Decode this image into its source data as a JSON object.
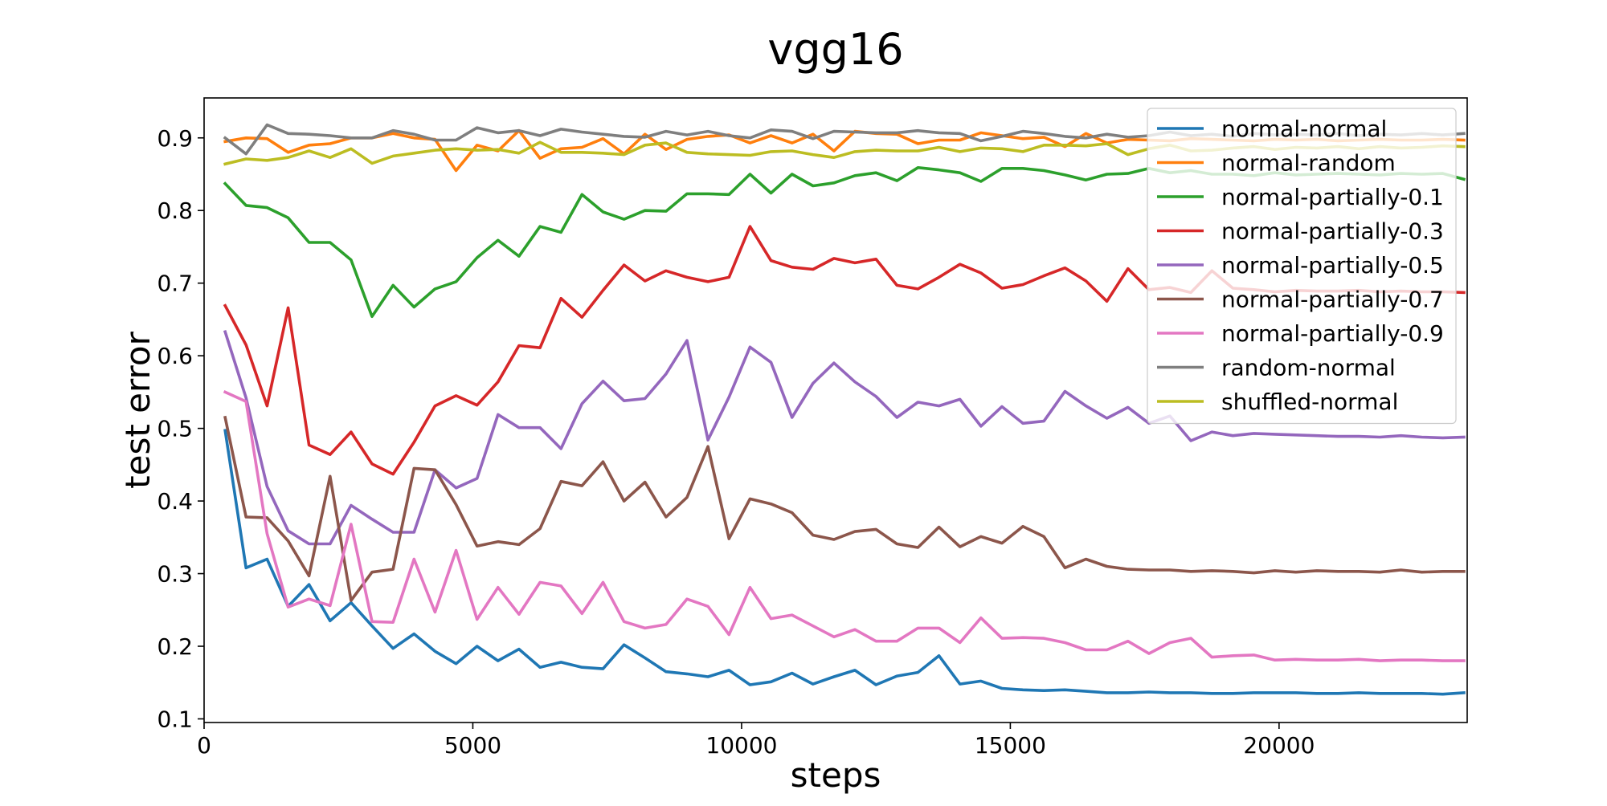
{
  "chart_data": {
    "type": "line",
    "title": "vgg16",
    "xlabel": "steps",
    "ylabel": "test error",
    "xlim": [
      0,
      23500
    ],
    "ylim": [
      0.095,
      0.955
    ],
    "xticks": [
      0,
      5000,
      10000,
      15000,
      20000
    ],
    "yticks": [
      0.1,
      0.2,
      0.3,
      0.4,
      0.5,
      0.6,
      0.7,
      0.8,
      0.9
    ],
    "grid": false,
    "legend_position": "top-right",
    "x": [
      391,
      781,
      1172,
      1563,
      1953,
      2344,
      2734,
      3125,
      3516,
      3906,
      4297,
      4688,
      5078,
      5469,
      5859,
      6250,
      6641,
      7031,
      7422,
      7813,
      8203,
      8594,
      8984,
      9375,
      9766,
      10156,
      10547,
      10938,
      11328,
      11719,
      12109,
      12500,
      12891,
      13281,
      13672,
      14063,
      14453,
      14844,
      15234,
      15625,
      16016,
      16406,
      16797,
      17188,
      17578,
      17969,
      18359,
      18750,
      19141,
      19531,
      19922,
      20313,
      20703,
      21094,
      21484,
      21875,
      22266,
      22656,
      23047,
      23438
    ],
    "series": [
      {
        "name": "normal-normal",
        "color": "#1f77b4",
        "values": [
          0.497,
          0.308,
          0.32,
          0.255,
          0.285,
          0.235,
          0.26,
          0.228,
          0.197,
          0.217,
          0.193,
          0.176,
          0.2,
          0.18,
          0.196,
          0.171,
          0.178,
          0.171,
          0.169,
          0.202,
          0.184,
          0.165,
          0.162,
          0.158,
          0.167,
          0.147,
          0.151,
          0.163,
          0.148,
          0.158,
          0.167,
          0.147,
          0.159,
          0.164,
          0.187,
          0.148,
          0.152,
          0.142,
          0.14,
          0.139,
          0.14,
          0.138,
          0.136,
          0.136,
          0.137,
          0.136,
          0.136,
          0.135,
          0.135,
          0.136,
          0.136,
          0.136,
          0.135,
          0.135,
          0.136,
          0.135,
          0.135,
          0.135,
          0.134,
          0.136
        ]
      },
      {
        "name": "normal-random",
        "color": "#ff7f0e",
        "values": [
          0.895,
          0.9,
          0.899,
          0.88,
          0.89,
          0.892,
          0.9,
          0.9,
          0.906,
          0.9,
          0.898,
          0.855,
          0.89,
          0.882,
          0.91,
          0.872,
          0.885,
          0.887,
          0.899,
          0.878,
          0.905,
          0.884,
          0.898,
          0.902,
          0.904,
          0.893,
          0.903,
          0.893,
          0.905,
          0.882,
          0.909,
          0.906,
          0.905,
          0.892,
          0.897,
          0.897,
          0.907,
          0.903,
          0.899,
          0.901,
          0.888,
          0.906,
          0.893,
          0.898,
          0.897,
          0.896,
          0.899,
          0.898,
          0.897,
          0.896,
          0.898,
          0.897,
          0.898,
          0.896,
          0.897,
          0.898,
          0.897,
          0.897,
          0.898,
          0.897
        ]
      },
      {
        "name": "normal-partially-0.1",
        "color": "#2ca02c",
        "values": [
          0.837,
          0.807,
          0.804,
          0.79,
          0.756,
          0.756,
          0.732,
          0.654,
          0.697,
          0.667,
          0.692,
          0.702,
          0.735,
          0.759,
          0.737,
          0.778,
          0.77,
          0.822,
          0.798,
          0.788,
          0.8,
          0.799,
          0.823,
          0.823,
          0.822,
          0.85,
          0.824,
          0.85,
          0.834,
          0.838,
          0.848,
          0.852,
          0.841,
          0.859,
          0.856,
          0.852,
          0.84,
          0.858,
          0.858,
          0.855,
          0.849,
          0.842,
          0.85,
          0.851,
          0.858,
          0.852,
          0.855,
          0.85,
          0.85,
          0.848,
          0.852,
          0.849,
          0.85,
          0.851,
          0.85,
          0.849,
          0.851,
          0.85,
          0.851,
          0.843
        ]
      },
      {
        "name": "normal-partially-0.3",
        "color": "#d62728",
        "values": [
          0.669,
          0.615,
          0.531,
          0.666,
          0.477,
          0.464,
          0.495,
          0.451,
          0.437,
          0.481,
          0.531,
          0.545,
          0.532,
          0.564,
          0.614,
          0.611,
          0.679,
          0.653,
          0.69,
          0.725,
          0.703,
          0.717,
          0.708,
          0.702,
          0.708,
          0.778,
          0.731,
          0.722,
          0.719,
          0.734,
          0.728,
          0.733,
          0.697,
          0.692,
          0.708,
          0.726,
          0.714,
          0.693,
          0.698,
          0.71,
          0.721,
          0.703,
          0.675,
          0.72,
          0.691,
          0.694,
          0.687,
          0.717,
          0.693,
          0.691,
          0.688,
          0.69,
          0.689,
          0.689,
          0.69,
          0.688,
          0.689,
          0.688,
          0.688,
          0.687
        ]
      },
      {
        "name": "normal-partially-0.5",
        "color": "#9467bd",
        "values": [
          0.633,
          0.542,
          0.42,
          0.359,
          0.341,
          0.341,
          0.394,
          0.375,
          0.357,
          0.357,
          0.443,
          0.418,
          0.431,
          0.519,
          0.501,
          0.501,
          0.472,
          0.534,
          0.565,
          0.538,
          0.541,
          0.575,
          0.621,
          0.484,
          0.543,
          0.612,
          0.591,
          0.515,
          0.562,
          0.59,
          0.564,
          0.544,
          0.515,
          0.536,
          0.531,
          0.54,
          0.503,
          0.53,
          0.507,
          0.51,
          0.551,
          0.531,
          0.514,
          0.529,
          0.507,
          0.517,
          0.483,
          0.495,
          0.49,
          0.493,
          0.492,
          0.491,
          0.49,
          0.489,
          0.489,
          0.488,
          0.49,
          0.488,
          0.487,
          0.488
        ]
      },
      {
        "name": "normal-partially-0.7",
        "color": "#8c564b",
        "values": [
          0.515,
          0.378,
          0.377,
          0.345,
          0.297,
          0.434,
          0.263,
          0.302,
          0.306,
          0.445,
          0.443,
          0.395,
          0.338,
          0.344,
          0.34,
          0.362,
          0.427,
          0.421,
          0.454,
          0.4,
          0.426,
          0.378,
          0.405,
          0.475,
          0.348,
          0.403,
          0.396,
          0.384,
          0.353,
          0.347,
          0.358,
          0.361,
          0.341,
          0.336,
          0.364,
          0.337,
          0.351,
          0.342,
          0.365,
          0.351,
          0.308,
          0.32,
          0.31,
          0.306,
          0.305,
          0.305,
          0.303,
          0.304,
          0.303,
          0.301,
          0.304,
          0.302,
          0.304,
          0.303,
          0.303,
          0.302,
          0.305,
          0.302,
          0.303,
          0.303
        ]
      },
      {
        "name": "normal-partially-0.9",
        "color": "#e377c2",
        "values": [
          0.55,
          0.537,
          0.355,
          0.254,
          0.265,
          0.256,
          0.368,
          0.234,
          0.233,
          0.32,
          0.247,
          0.332,
          0.237,
          0.281,
          0.244,
          0.288,
          0.283,
          0.245,
          0.288,
          0.234,
          0.225,
          0.23,
          0.265,
          0.255,
          0.216,
          0.281,
          0.238,
          0.243,
          0.228,
          0.213,
          0.223,
          0.207,
          0.207,
          0.225,
          0.225,
          0.205,
          0.239,
          0.211,
          0.212,
          0.211,
          0.205,
          0.195,
          0.195,
          0.207,
          0.19,
          0.205,
          0.211,
          0.185,
          0.187,
          0.188,
          0.181,
          0.182,
          0.181,
          0.181,
          0.182,
          0.18,
          0.181,
          0.181,
          0.18,
          0.18
        ]
      },
      {
        "name": "random-normal",
        "color": "#7f7f7f",
        "values": [
          0.9,
          0.878,
          0.918,
          0.906,
          0.905,
          0.903,
          0.9,
          0.9,
          0.91,
          0.905,
          0.897,
          0.897,
          0.914,
          0.907,
          0.91,
          0.903,
          0.912,
          0.908,
          0.905,
          0.902,
          0.901,
          0.909,
          0.904,
          0.909,
          0.903,
          0.9,
          0.911,
          0.909,
          0.899,
          0.909,
          0.908,
          0.907,
          0.907,
          0.91,
          0.907,
          0.906,
          0.896,
          0.902,
          0.909,
          0.906,
          0.902,
          0.9,
          0.905,
          0.901,
          0.903,
          0.908,
          0.903,
          0.905,
          0.902,
          0.906,
          0.904,
          0.905,
          0.904,
          0.906,
          0.903,
          0.905,
          0.904,
          0.906,
          0.904,
          0.906
        ]
      },
      {
        "name": "shuffled-normal",
        "color": "#bcbd22",
        "values": [
          0.864,
          0.871,
          0.869,
          0.873,
          0.882,
          0.873,
          0.885,
          0.865,
          0.875,
          0.879,
          0.883,
          0.885,
          0.883,
          0.884,
          0.879,
          0.894,
          0.88,
          0.88,
          0.879,
          0.877,
          0.89,
          0.893,
          0.88,
          0.878,
          0.877,
          0.876,
          0.881,
          0.882,
          0.877,
          0.873,
          0.881,
          0.883,
          0.882,
          0.882,
          0.887,
          0.881,
          0.886,
          0.885,
          0.881,
          0.89,
          0.89,
          0.889,
          0.892,
          0.877,
          0.885,
          0.89,
          0.882,
          0.883,
          0.886,
          0.888,
          0.884,
          0.887,
          0.886,
          0.888,
          0.885,
          0.888,
          0.886,
          0.887,
          0.889,
          0.888
        ]
      }
    ]
  }
}
